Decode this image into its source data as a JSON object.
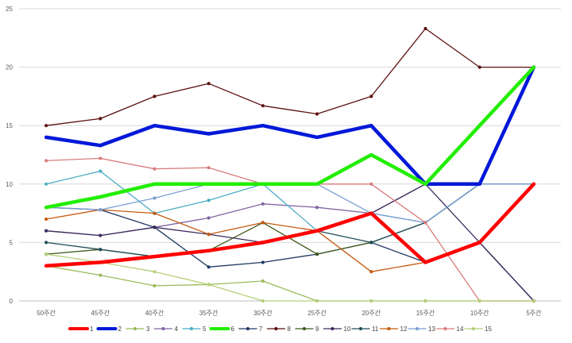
{
  "chart_data": {
    "type": "line",
    "title": "",
    "xlabel": "",
    "ylabel": "",
    "categories": [
      "50주간",
      "45주간",
      "40주간",
      "35주간",
      "30주간",
      "25주간",
      "20주간",
      "15주간",
      "10주간",
      "5주간"
    ],
    "ylim": [
      0,
      25
    ],
    "yticks": [
      0,
      5,
      10,
      15,
      20,
      25
    ],
    "grid": true,
    "legend_position": "bottom",
    "series": [
      {
        "name": "1",
        "color": "#ff0000",
        "width": 4.5,
        "values": [
          3,
          3.3,
          3.8,
          4.3,
          5,
          6,
          7.5,
          3.3,
          5,
          10
        ]
      },
      {
        "name": "2",
        "color": "#0018d8",
        "width": 4.5,
        "values": [
          14,
          13.3,
          15,
          14.3,
          15,
          14,
          15,
          10,
          10,
          20
        ]
      },
      {
        "name": "3",
        "color": "#9bbb59",
        "width": 1.3,
        "values": [
          3,
          2.2,
          1.3,
          1.4,
          1.7,
          0,
          0,
          0,
          0,
          0
        ]
      },
      {
        "name": "4",
        "color": "#8064a2",
        "width": 1.3,
        "values": [
          6,
          5.6,
          6.3,
          7.1,
          8.3,
          8,
          7.5,
          10,
          10,
          10
        ]
      },
      {
        "name": "5",
        "color": "#4bacc6",
        "width": 1.3,
        "values": [
          10,
          11.1,
          7.5,
          8.6,
          10,
          6,
          7.5,
          6.7,
          10,
          10
        ]
      },
      {
        "name": "6",
        "color": "#22ee00",
        "width": 4.5,
        "values": [
          8,
          8.9,
          10,
          10,
          10,
          10,
          12.5,
          10,
          15,
          20
        ]
      },
      {
        "name": "7",
        "color": "#1f3864",
        "width": 1.3,
        "values": [
          8,
          7.8,
          6.3,
          2.9,
          3.3,
          4,
          5,
          3.3,
          5,
          0
        ]
      },
      {
        "name": "8",
        "color": "#5c1010",
        "width": 1.3,
        "values": [
          15,
          15.6,
          17.5,
          18.6,
          16.7,
          16,
          17.5,
          23.3,
          20,
          20
        ]
      },
      {
        "name": "9",
        "color": "#3f5a1a",
        "width": 1.3,
        "values": [
          4,
          4.4,
          3.8,
          4.3,
          6.7,
          4,
          5,
          6.7,
          10,
          10
        ]
      },
      {
        "name": "10",
        "color": "#3d2b5c",
        "width": 1.3,
        "values": [
          6,
          5.6,
          6.3,
          5.7,
          5,
          6,
          7.5,
          10,
          5,
          0
        ]
      },
      {
        "name": "11",
        "color": "#1f4e5c",
        "width": 1.3,
        "values": [
          5,
          4.4,
          3.8,
          4.3,
          5,
          6,
          5,
          6.7,
          10,
          10
        ]
      },
      {
        "name": "12",
        "color": "#c55a11",
        "width": 1.3,
        "values": [
          7,
          7.8,
          7.5,
          5.7,
          6.7,
          6,
          2.5,
          3.3,
          5,
          10
        ]
      },
      {
        "name": "13",
        "color": "#7aa0d4",
        "width": 1.3,
        "values": [
          8,
          7.8,
          8.8,
          10,
          10,
          10,
          7.5,
          6.7,
          10,
          10
        ]
      },
      {
        "name": "14",
        "color": "#d97b7b",
        "width": 1.3,
        "values": [
          12,
          12.2,
          11.3,
          11.4,
          10,
          10,
          10,
          6.7,
          0,
          0
        ]
      },
      {
        "name": "15",
        "color": "#b5cf7a",
        "width": 1.3,
        "values": [
          4,
          3.3,
          2.5,
          1.4,
          0,
          0,
          0,
          0,
          0,
          0
        ]
      }
    ]
  }
}
